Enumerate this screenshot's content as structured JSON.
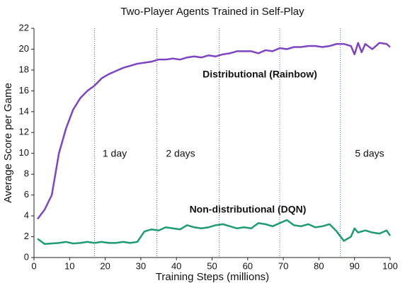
{
  "chart_data": {
    "type": "line",
    "title": "Two-Player Agents Trained in Self-Play",
    "xlabel": "Training Steps (millions)",
    "ylabel": "Average Score per Game",
    "x": [
      1,
      3,
      5,
      7,
      9,
      11,
      13,
      15,
      17,
      19,
      21,
      23,
      25,
      27,
      29,
      31,
      33,
      35,
      37,
      39,
      41,
      43,
      45,
      47,
      49,
      51,
      53,
      55,
      57,
      59,
      61,
      63,
      65,
      67,
      69,
      71,
      73,
      75,
      77,
      79,
      81,
      83,
      85,
      87,
      89,
      90,
      91,
      92,
      93,
      95,
      97,
      99,
      100
    ],
    "series": [
      {
        "name": "Distributional (Rainbow)",
        "color": "#7d44c4",
        "values": [
          3.7,
          4.6,
          6.0,
          10.0,
          12.4,
          14.2,
          15.3,
          16.0,
          16.5,
          17.2,
          17.6,
          17.9,
          18.2,
          18.4,
          18.6,
          18.7,
          18.8,
          19.0,
          19.0,
          19.1,
          19.0,
          19.2,
          19.3,
          19.2,
          19.4,
          19.3,
          19.5,
          19.6,
          19.8,
          19.8,
          19.8,
          19.6,
          19.9,
          19.8,
          20.1,
          20.0,
          20.2,
          20.2,
          20.3,
          20.3,
          20.2,
          20.3,
          20.5,
          20.5,
          20.3,
          19.5,
          20.6,
          19.7,
          20.5,
          20.0,
          20.6,
          20.5,
          20.2
        ]
      },
      {
        "name": "Non-distributional (DQN)",
        "color": "#1f9b72",
        "values": [
          1.8,
          1.3,
          1.35,
          1.4,
          1.5,
          1.35,
          1.4,
          1.5,
          1.4,
          1.5,
          1.4,
          1.4,
          1.5,
          1.4,
          1.5,
          2.5,
          2.7,
          2.6,
          2.9,
          2.8,
          2.7,
          3.1,
          2.9,
          2.8,
          2.9,
          3.1,
          3.2,
          3.0,
          2.8,
          2.9,
          2.8,
          3.3,
          3.2,
          3.0,
          3.3,
          3.6,
          3.1,
          3.0,
          3.2,
          2.9,
          3.0,
          3.2,
          2.5,
          1.6,
          2.0,
          2.8,
          2.4,
          2.5,
          2.6,
          2.4,
          2.3,
          2.6,
          2.1
        ]
      }
    ],
    "xlim": [
      0,
      100
    ],
    "xticks": [
      0,
      10,
      20,
      30,
      40,
      50,
      60,
      70,
      80,
      90,
      100
    ],
    "ylim": [
      0,
      22
    ],
    "yticks": [
      0,
      2,
      4,
      6,
      8,
      10,
      12,
      14,
      16,
      18,
      20,
      22
    ],
    "vlines": [
      17,
      34.5,
      52,
      69,
      86
    ],
    "annotations": [
      "1 day",
      "2 days",
      "5 days"
    ]
  }
}
